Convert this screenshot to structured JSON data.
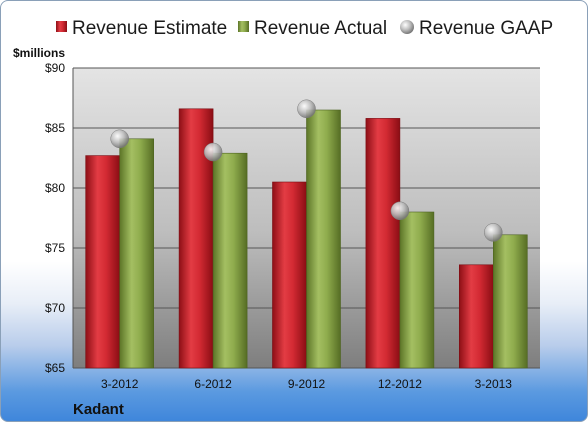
{
  "chart_data": {
    "type": "bar",
    "categories": [
      "3-2012",
      "6-2012",
      "9-2012",
      "12-2012",
      "3-2013"
    ],
    "series": [
      {
        "name": "Revenue Estimate",
        "values": [
          82.7,
          86.6,
          80.5,
          85.8,
          73.6
        ]
      },
      {
        "name": "Revenue Actual",
        "values": [
          84.1,
          82.9,
          86.5,
          78.0,
          76.1
        ]
      },
      {
        "name": "Revenue GAAP",
        "values": [
          84.1,
          83.0,
          86.6,
          78.1,
          76.3
        ]
      }
    ],
    "ylabel": "$millions",
    "ylim": [
      65,
      90
    ],
    "yticks": [
      "$65",
      "$70",
      "$75",
      "$80",
      "$85",
      "$90"
    ],
    "ytick_values": [
      65,
      70,
      75,
      80,
      85,
      90
    ],
    "grid": true,
    "legend": "top",
    "colors": {
      "estimate": "#c0222b",
      "actual": "#7e9a3e",
      "gaap": "#a7a7a7"
    }
  },
  "company": "Kadant"
}
